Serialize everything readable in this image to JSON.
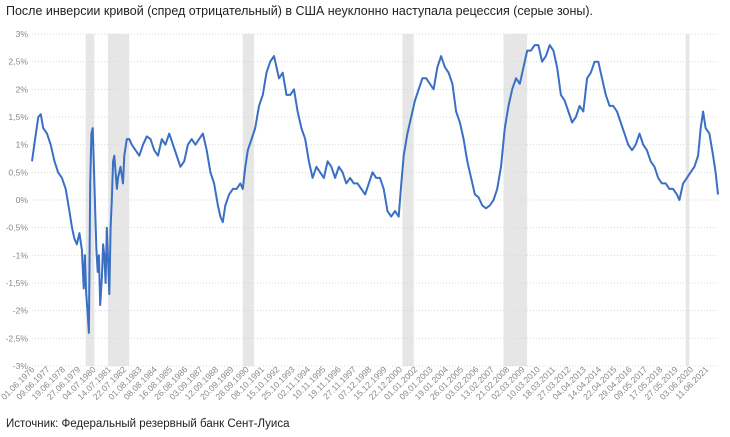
{
  "title": "После инверсии кривой (спред отрицательный) в США неуклонно наступала рецессия (серые зоны).",
  "source": "Источник: Федеральный резервный банк Сент-Луиса",
  "colors": {
    "line": "#3a6fc4",
    "recession": "#e6e6e6",
    "grid": "#d9d9d9",
    "axis_text": "#888888"
  },
  "chart_data": {
    "type": "line",
    "title": "После инверсии кривой (спред отрицательный) в США неуклонно наступала рецессия (серые зоны).",
    "xlabel": "",
    "ylabel": "",
    "ylim": [
      -3,
      3
    ],
    "xlim": [
      "1976-06-01",
      "2022-03-31"
    ],
    "y_ticks": [
      "3%",
      "2,5%",
      "2%",
      "1,5%",
      "1%",
      "0,5%",
      "0%",
      "-0,5%",
      "-1%",
      "-1,5%",
      "-2%",
      "-2,5%",
      "-3%"
    ],
    "x_tick_labels": [
      "01.06.1976",
      "09.06.1977",
      "19.06.1978",
      "27.06.1979",
      "04.07.1980",
      "14.07.1981",
      "22.07.1982",
      "01.08.1983",
      "08.08.1984",
      "16.08.1985",
      "26.08.1986",
      "03.09.1987",
      "12.09.1988",
      "20.09.1989",
      "28.09.1990",
      "08.10.1991",
      "15.10.1992",
      "25.10.1993",
      "02.11.1994",
      "10.11.1995",
      "19.11.1996",
      "27.11.1997",
      "07.12.1998",
      "15.12.1999",
      "22.12.2000",
      "01.01.2002",
      "09.01.2003",
      "19.01.2004",
      "26.01.2005",
      "03.02.2006",
      "13.02.2007",
      "21.02.2008",
      "02.03.2009",
      "10.03.2010",
      "18.03.2011",
      "27.03.2012",
      "04.04.2013",
      "14.04.2014",
      "22.04.2015",
      "29.04.2016",
      "09.05.2017",
      "17.05.2018",
      "27.05.2019",
      "03.06.2020",
      "11.06.2021"
    ],
    "recessions": [
      [
        "1980-01-01",
        "1980-07-31"
      ],
      [
        "1981-07-01",
        "1982-11-30"
      ],
      [
        "1990-07-01",
        "1991-03-31"
      ],
      [
        "2001-03-01",
        "2001-11-30"
      ],
      [
        "2007-12-01",
        "2009-06-30"
      ],
      [
        "2020-02-01",
        "2020-04-30"
      ]
    ],
    "series": [
      {
        "name": "",
        "points": [
          [
            "1976-06-01",
            0.7
          ],
          [
            "1976-08-15",
            1.1
          ],
          [
            "1976-11-01",
            1.5
          ],
          [
            "1977-01-01",
            1.55
          ],
          [
            "1977-03-01",
            1.3
          ],
          [
            "1977-06-01",
            1.2
          ],
          [
            "1977-09-01",
            1.0
          ],
          [
            "1977-12-01",
            0.7
          ],
          [
            "1978-03-01",
            0.5
          ],
          [
            "1978-06-01",
            0.4
          ],
          [
            "1978-09-01",
            0.2
          ],
          [
            "1978-12-01",
            -0.2
          ],
          [
            "1979-02-01",
            -0.5
          ],
          [
            "1979-04-01",
            -0.7
          ],
          [
            "1979-06-01",
            -0.8
          ],
          [
            "1979-08-01",
            -0.6
          ],
          [
            "1979-10-01",
            -0.9
          ],
          [
            "1979-11-15",
            -1.6
          ],
          [
            "1979-12-15",
            -1.0
          ],
          [
            "1980-01-15",
            -1.7
          ],
          [
            "1980-02-15",
            -2.0
          ],
          [
            "1980-03-20",
            -2.4
          ],
          [
            "1980-04-20",
            0.3
          ],
          [
            "1980-05-20",
            1.2
          ],
          [
            "1980-06-20",
            1.3
          ],
          [
            "1980-07-20",
            0.6
          ],
          [
            "1980-08-20",
            -0.2
          ],
          [
            "1980-09-20",
            -0.9
          ],
          [
            "1980-10-20",
            -1.3
          ],
          [
            "1980-11-20",
            -1.0
          ],
          [
            "1980-12-20",
            -1.9
          ],
          [
            "1981-02-01",
            -1.4
          ],
          [
            "1981-03-01",
            -0.8
          ],
          [
            "1981-04-01",
            -1.0
          ],
          [
            "1981-05-01",
            -1.5
          ],
          [
            "1981-06-01",
            -0.5
          ],
          [
            "1981-07-01",
            -1.1
          ],
          [
            "1981-08-01",
            -1.7
          ],
          [
            "1981-09-01",
            -0.5
          ],
          [
            "1981-10-01",
            0.0
          ],
          [
            "1981-11-01",
            0.7
          ],
          [
            "1981-12-01",
            0.8
          ],
          [
            "1982-01-01",
            0.5
          ],
          [
            "1982-02-01",
            0.2
          ],
          [
            "1982-03-01",
            0.4
          ],
          [
            "1982-05-01",
            0.6
          ],
          [
            "1982-07-01",
            0.3
          ],
          [
            "1982-08-01",
            0.8
          ],
          [
            "1982-10-01",
            1.1
          ],
          [
            "1982-12-01",
            1.1
          ],
          [
            "1983-02-01",
            1.0
          ],
          [
            "1983-05-01",
            0.9
          ],
          [
            "1983-08-01",
            0.8
          ],
          [
            "1983-11-01",
            1.0
          ],
          [
            "1984-02-01",
            1.15
          ],
          [
            "1984-05-01",
            1.1
          ],
          [
            "1984-08-01",
            0.9
          ],
          [
            "1984-11-01",
            0.8
          ],
          [
            "1985-02-01",
            1.1
          ],
          [
            "1985-05-01",
            1.0
          ],
          [
            "1985-08-01",
            1.2
          ],
          [
            "1985-11-01",
            1.0
          ],
          [
            "1986-02-01",
            0.8
          ],
          [
            "1986-05-01",
            0.6
          ],
          [
            "1986-08-01",
            0.7
          ],
          [
            "1986-11-01",
            1.0
          ],
          [
            "1987-02-01",
            1.1
          ],
          [
            "1987-05-01",
            1.0
          ],
          [
            "1987-08-01",
            1.1
          ],
          [
            "1987-11-01",
            1.2
          ],
          [
            "1988-02-01",
            0.9
          ],
          [
            "1988-05-01",
            0.5
          ],
          [
            "1988-08-01",
            0.3
          ],
          [
            "1988-11-01",
            -0.1
          ],
          [
            "1989-01-01",
            -0.3
          ],
          [
            "1989-03-01",
            -0.4
          ],
          [
            "1989-05-01",
            -0.1
          ],
          [
            "1989-08-01",
            0.1
          ],
          [
            "1989-11-01",
            0.2
          ],
          [
            "1990-02-01",
            0.2
          ],
          [
            "1990-05-01",
            0.3
          ],
          [
            "1990-07-01",
            0.2
          ],
          [
            "1990-09-01",
            0.6
          ],
          [
            "1990-11-01",
            0.9
          ],
          [
            "1991-02-01",
            1.1
          ],
          [
            "1991-05-01",
            1.3
          ],
          [
            "1991-08-01",
            1.7
          ],
          [
            "1991-11-01",
            1.9
          ],
          [
            "1992-02-01",
            2.3
          ],
          [
            "1992-05-01",
            2.5
          ],
          [
            "1992-08-01",
            2.6
          ],
          [
            "1992-10-01",
            2.4
          ],
          [
            "1992-12-01",
            2.2
          ],
          [
            "1993-03-01",
            2.3
          ],
          [
            "1993-06-01",
            1.9
          ],
          [
            "1993-09-01",
            1.9
          ],
          [
            "1993-12-01",
            2.0
          ],
          [
            "1994-03-01",
            1.6
          ],
          [
            "1994-06-01",
            1.3
          ],
          [
            "1994-09-01",
            1.1
          ],
          [
            "1994-12-01",
            0.7
          ],
          [
            "1995-03-01",
            0.4
          ],
          [
            "1995-06-01",
            0.6
          ],
          [
            "1995-09-01",
            0.5
          ],
          [
            "1995-12-01",
            0.4
          ],
          [
            "1996-03-01",
            0.7
          ],
          [
            "1996-06-01",
            0.6
          ],
          [
            "1996-09-01",
            0.4
          ],
          [
            "1996-12-01",
            0.6
          ],
          [
            "1997-03-01",
            0.5
          ],
          [
            "1997-06-01",
            0.3
          ],
          [
            "1997-09-01",
            0.4
          ],
          [
            "1997-12-01",
            0.3
          ],
          [
            "1998-03-01",
            0.3
          ],
          [
            "1998-06-01",
            0.2
          ],
          [
            "1998-09-01",
            0.1
          ],
          [
            "1998-12-01",
            0.3
          ],
          [
            "1999-03-01",
            0.5
          ],
          [
            "1999-06-01",
            0.4
          ],
          [
            "1999-09-01",
            0.4
          ],
          [
            "1999-12-01",
            0.2
          ],
          [
            "2000-03-01",
            -0.2
          ],
          [
            "2000-06-01",
            -0.3
          ],
          [
            "2000-09-01",
            -0.2
          ],
          [
            "2000-12-01",
            -0.3
          ],
          [
            "2001-02-01",
            0.3
          ],
          [
            "2001-04-01",
            0.8
          ],
          [
            "2001-07-01",
            1.2
          ],
          [
            "2001-10-01",
            1.5
          ],
          [
            "2002-01-01",
            1.8
          ],
          [
            "2002-04-01",
            2.0
          ],
          [
            "2002-07-01",
            2.2
          ],
          [
            "2002-10-01",
            2.2
          ],
          [
            "2003-01-01",
            2.1
          ],
          [
            "2003-04-01",
            2.0
          ],
          [
            "2003-07-01",
            2.4
          ],
          [
            "2003-10-01",
            2.6
          ],
          [
            "2004-01-01",
            2.4
          ],
          [
            "2004-04-01",
            2.3
          ],
          [
            "2004-07-01",
            2.1
          ],
          [
            "2004-10-01",
            1.6
          ],
          [
            "2005-01-01",
            1.4
          ],
          [
            "2005-04-01",
            1.1
          ],
          [
            "2005-07-01",
            0.7
          ],
          [
            "2005-10-01",
            0.4
          ],
          [
            "2006-01-01",
            0.1
          ],
          [
            "2006-04-01",
            0.05
          ],
          [
            "2006-07-01",
            -0.1
          ],
          [
            "2006-10-01",
            -0.15
          ],
          [
            "2007-01-01",
            -0.1
          ],
          [
            "2007-04-01",
            0.0
          ],
          [
            "2007-07-01",
            0.2
          ],
          [
            "2007-10-01",
            0.6
          ],
          [
            "2008-01-01",
            1.3
          ],
          [
            "2008-04-01",
            1.7
          ],
          [
            "2008-07-01",
            2.0
          ],
          [
            "2008-10-01",
            2.2
          ],
          [
            "2009-01-01",
            2.1
          ],
          [
            "2009-04-01",
            2.4
          ],
          [
            "2009-07-01",
            2.7
          ],
          [
            "2009-10-01",
            2.7
          ],
          [
            "2010-01-01",
            2.8
          ],
          [
            "2010-04-01",
            2.8
          ],
          [
            "2010-07-01",
            2.5
          ],
          [
            "2010-10-01",
            2.6
          ],
          [
            "2011-01-01",
            2.8
          ],
          [
            "2011-04-01",
            2.7
          ],
          [
            "2011-07-01",
            2.4
          ],
          [
            "2011-10-01",
            1.9
          ],
          [
            "2012-01-01",
            1.8
          ],
          [
            "2012-04-01",
            1.6
          ],
          [
            "2012-07-01",
            1.4
          ],
          [
            "2012-10-01",
            1.5
          ],
          [
            "2013-01-01",
            1.7
          ],
          [
            "2013-04-01",
            1.6
          ],
          [
            "2013-07-01",
            2.2
          ],
          [
            "2013-10-01",
            2.3
          ],
          [
            "2014-01-01",
            2.5
          ],
          [
            "2014-04-01",
            2.5
          ],
          [
            "2014-07-01",
            2.2
          ],
          [
            "2014-10-01",
            1.9
          ],
          [
            "2015-01-01",
            1.7
          ],
          [
            "2015-04-01",
            1.7
          ],
          [
            "2015-07-01",
            1.6
          ],
          [
            "2015-10-01",
            1.4
          ],
          [
            "2016-01-01",
            1.2
          ],
          [
            "2016-04-01",
            1.0
          ],
          [
            "2016-07-01",
            0.9
          ],
          [
            "2016-10-01",
            1.0
          ],
          [
            "2017-01-01",
            1.2
          ],
          [
            "2017-04-01",
            1.0
          ],
          [
            "2017-07-01",
            0.9
          ],
          [
            "2017-10-01",
            0.7
          ],
          [
            "2018-01-01",
            0.6
          ],
          [
            "2018-04-01",
            0.4
          ],
          [
            "2018-07-01",
            0.3
          ],
          [
            "2018-10-01",
            0.3
          ],
          [
            "2019-01-01",
            0.2
          ],
          [
            "2019-04-01",
            0.2
          ],
          [
            "2019-07-01",
            0.1
          ],
          [
            "2019-09-01",
            0.0
          ],
          [
            "2019-12-01",
            0.3
          ],
          [
            "2020-03-01",
            0.4
          ],
          [
            "2020-06-01",
            0.5
          ],
          [
            "2020-09-01",
            0.6
          ],
          [
            "2020-12-01",
            0.8
          ],
          [
            "2021-02-01",
            1.3
          ],
          [
            "2021-04-01",
            1.6
          ],
          [
            "2021-06-01",
            1.3
          ],
          [
            "2021-09-01",
            1.2
          ],
          [
            "2021-12-01",
            0.8
          ],
          [
            "2022-02-01",
            0.5
          ],
          [
            "2022-03-31",
            0.1
          ]
        ]
      }
    ]
  }
}
